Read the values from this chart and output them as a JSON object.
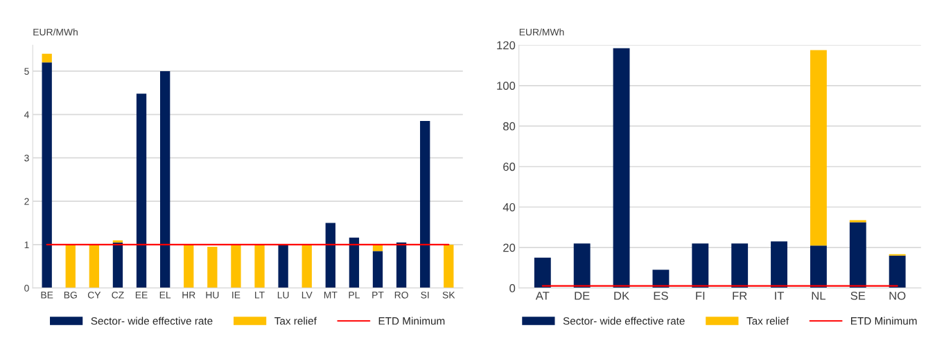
{
  "chart_data": [
    {
      "type": "bar",
      "stacked": true,
      "ylabel": "EUR/MWh",
      "categories": [
        "BE",
        "BG",
        "CY",
        "CZ",
        "EE",
        "EL",
        "HR",
        "HU",
        "IE",
        "LT",
        "LU",
        "LV",
        "MT",
        "PL",
        "PT",
        "RO",
        "SI",
        "SK"
      ],
      "series": [
        {
          "name": "Sector- wide effective rate",
          "color": "#001f5c",
          "values": [
            5.2,
            null,
            null,
            1.05,
            4.48,
            5.0,
            null,
            null,
            null,
            null,
            1.0,
            null,
            1.5,
            1.16,
            0.85,
            1.05,
            3.85,
            null
          ]
        },
        {
          "name": "Tax relief",
          "color": "#ffc000",
          "values": [
            0.2,
            1.0,
            1.0,
            0.05,
            null,
            null,
            1.0,
            0.95,
            1.0,
            1.0,
            null,
            1.0,
            null,
            null,
            0.15,
            null,
            null,
            1.0
          ]
        },
        {
          "name": "ETD Minimum",
          "type": "line",
          "color": "#ff0000",
          "values": [
            1,
            1,
            1,
            1,
            1,
            1,
            1,
            1,
            1,
            1,
            1,
            1,
            1,
            1,
            1,
            1,
            1,
            1
          ]
        }
      ],
      "ylim": [
        0,
        5.6
      ],
      "yticks": [
        0,
        1,
        2,
        3,
        4,
        5
      ],
      "grid": "y",
      "legend": "bottom"
    },
    {
      "type": "bar",
      "stacked": true,
      "ylabel": "EUR/MWh",
      "categories": [
        "AT",
        "DE",
        "DK",
        "ES",
        "FI",
        "FR",
        "IT",
        "NL",
        "SE",
        "NO"
      ],
      "series": [
        {
          "name": "Sector- wide effective rate",
          "color": "#001f5c",
          "values": [
            15,
            22,
            118.5,
            9,
            22,
            22,
            23,
            21,
            32.5,
            16
          ]
        },
        {
          "name": "Tax relief",
          "color": "#ffc000",
          "values": [
            null,
            null,
            null,
            null,
            null,
            null,
            null,
            96.5,
            1,
            0.7
          ]
        },
        {
          "name": "ETD Minimum",
          "type": "line",
          "color": "#ff0000",
          "values": [
            1,
            1,
            1,
            1,
            1,
            1,
            1,
            1,
            1,
            1
          ]
        }
      ],
      "ylim": [
        0,
        120
      ],
      "yticks": [
        0,
        20,
        40,
        60,
        80,
        100,
        120
      ],
      "grid": "y",
      "legend": "bottom"
    }
  ]
}
